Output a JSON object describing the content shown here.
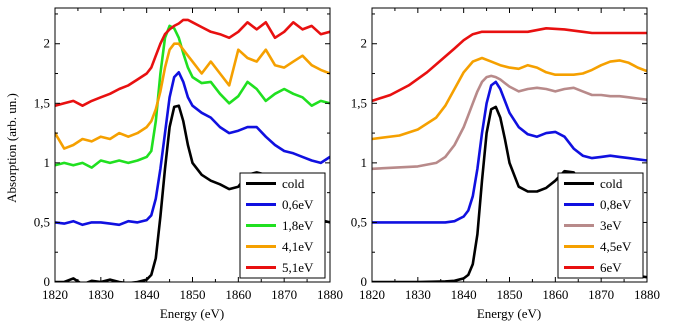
{
  "chart_data": [
    {
      "type": "line",
      "ylabel": "Absorption (arb. un.)",
      "xlabel": "Energy (eV)",
      "xlim": [
        1820,
        1880
      ],
      "ylim": [
        0,
        2.3
      ],
      "x_ticks": [
        1820,
        1830,
        1840,
        1850,
        1860,
        1870,
        1880
      ],
      "y_ticks": [
        "0",
        "0,5",
        "1",
        "1,5",
        "2"
      ],
      "y_tick_values": [
        0,
        0.5,
        1,
        1.5,
        2
      ],
      "legend_position": "bottom-right",
      "series": [
        {
          "name": "cold",
          "color": "#000000",
          "x": [
            1820,
            1822,
            1824,
            1826,
            1828,
            1830,
            1832,
            1834,
            1836,
            1838,
            1840,
            1841,
            1842,
            1843,
            1844,
            1845,
            1846,
            1847,
            1848,
            1849,
            1850,
            1852,
            1854,
            1856,
            1858,
            1860,
            1862,
            1864,
            1866,
            1868,
            1870,
            1872,
            1874,
            1876,
            1878,
            1880
          ],
          "y": [
            0.0,
            0.0,
            0.03,
            -0.02,
            0.01,
            0.0,
            0.02,
            0.0,
            -0.01,
            0.0,
            0.02,
            0.06,
            0.2,
            0.55,
            0.95,
            1.3,
            1.47,
            1.48,
            1.35,
            1.15,
            1.0,
            0.9,
            0.85,
            0.82,
            0.78,
            0.8,
            0.9,
            0.92,
            0.9,
            0.82,
            0.72,
            0.65,
            0.58,
            0.53,
            0.52,
            0.5
          ]
        },
        {
          "name": "0,6eV",
          "color": "#1010e0",
          "x": [
            1820,
            1822,
            1824,
            1826,
            1828,
            1830,
            1832,
            1834,
            1836,
            1838,
            1840,
            1841,
            1842,
            1843,
            1844,
            1845,
            1846,
            1847,
            1848,
            1849,
            1850,
            1852,
            1854,
            1856,
            1858,
            1860,
            1862,
            1864,
            1866,
            1868,
            1870,
            1872,
            1874,
            1876,
            1878,
            1880
          ],
          "y": [
            0.5,
            0.49,
            0.51,
            0.48,
            0.5,
            0.5,
            0.49,
            0.48,
            0.51,
            0.5,
            0.52,
            0.56,
            0.7,
            0.95,
            1.25,
            1.55,
            1.72,
            1.76,
            1.68,
            1.55,
            1.48,
            1.42,
            1.38,
            1.3,
            1.25,
            1.27,
            1.3,
            1.3,
            1.22,
            1.15,
            1.1,
            1.08,
            1.05,
            1.02,
            1.0,
            1.05
          ]
        },
        {
          "name": "1,8eV",
          "color": "#20e020",
          "x": [
            1820,
            1822,
            1824,
            1826,
            1828,
            1830,
            1832,
            1834,
            1836,
            1838,
            1840,
            1841,
            1842,
            1843,
            1844,
            1845,
            1846,
            1847,
            1848,
            1849,
            1850,
            1852,
            1854,
            1856,
            1858,
            1860,
            1862,
            1864,
            1866,
            1868,
            1870,
            1872,
            1874,
            1876,
            1878,
            1880
          ],
          "y": [
            0.98,
            1.0,
            0.98,
            1.0,
            0.96,
            1.02,
            1.0,
            1.02,
            1.0,
            1.02,
            1.05,
            1.1,
            1.35,
            1.75,
            2.05,
            2.15,
            2.13,
            2.05,
            1.92,
            1.8,
            1.72,
            1.67,
            1.68,
            1.58,
            1.5,
            1.56,
            1.68,
            1.62,
            1.52,
            1.58,
            1.62,
            1.58,
            1.55,
            1.48,
            1.52,
            1.5
          ]
        },
        {
          "name": "4,1eV",
          "color": "#f5a000",
          "x": [
            1820,
            1822,
            1824,
            1826,
            1828,
            1830,
            1832,
            1834,
            1836,
            1838,
            1840,
            1841,
            1842,
            1843,
            1844,
            1845,
            1846,
            1847,
            1848,
            1849,
            1850,
            1852,
            1854,
            1856,
            1858,
            1860,
            1862,
            1864,
            1866,
            1868,
            1870,
            1872,
            1874,
            1876,
            1878,
            1880
          ],
          "y": [
            1.25,
            1.12,
            1.15,
            1.2,
            1.18,
            1.22,
            1.2,
            1.25,
            1.22,
            1.25,
            1.3,
            1.35,
            1.45,
            1.6,
            1.8,
            1.95,
            2.0,
            2.0,
            1.95,
            1.9,
            1.85,
            1.75,
            1.85,
            1.75,
            1.65,
            1.95,
            1.88,
            1.85,
            1.95,
            1.82,
            1.8,
            1.85,
            1.9,
            1.82,
            1.78,
            1.75
          ]
        },
        {
          "name": "5,1eV",
          "color": "#e81010",
          "x": [
            1820,
            1822,
            1824,
            1826,
            1828,
            1830,
            1832,
            1834,
            1836,
            1838,
            1840,
            1841,
            1842,
            1843,
            1844,
            1845,
            1846,
            1847,
            1848,
            1849,
            1850,
            1852,
            1854,
            1856,
            1858,
            1860,
            1862,
            1864,
            1866,
            1868,
            1870,
            1872,
            1874,
            1876,
            1878,
            1880
          ],
          "y": [
            1.48,
            1.5,
            1.52,
            1.48,
            1.52,
            1.55,
            1.58,
            1.62,
            1.65,
            1.7,
            1.75,
            1.8,
            1.9,
            2.0,
            2.08,
            2.12,
            2.15,
            2.17,
            2.2,
            2.2,
            2.18,
            2.14,
            2.1,
            2.08,
            2.05,
            2.1,
            2.18,
            2.12,
            2.18,
            2.05,
            2.1,
            2.18,
            2.12,
            2.15,
            2.08,
            2.1
          ]
        }
      ]
    },
    {
      "type": "line",
      "ylabel": "",
      "xlabel": "Energy (eV)",
      "xlim": [
        1820,
        1880
      ],
      "ylim": [
        0,
        2.3
      ],
      "x_ticks": [
        1820,
        1830,
        1840,
        1850,
        1860,
        1870,
        1880
      ],
      "y_ticks": [
        "0",
        "0,5",
        "1",
        "1,5",
        "2"
      ],
      "y_tick_values": [
        0,
        0.5,
        1,
        1.5,
        2
      ],
      "legend_position": "bottom-right",
      "series": [
        {
          "name": "cold",
          "color": "#000000",
          "x": [
            1820,
            1830,
            1836,
            1838,
            1840,
            1841,
            1842,
            1843,
            1844,
            1845,
            1846,
            1847,
            1848,
            1849,
            1850,
            1852,
            1854,
            1856,
            1858,
            1860,
            1862,
            1864,
            1866,
            1868,
            1870,
            1872,
            1874,
            1876,
            1878,
            1880
          ],
          "y": [
            0,
            0,
            0.005,
            0.01,
            0.03,
            0.06,
            0.15,
            0.4,
            0.85,
            1.25,
            1.45,
            1.47,
            1.38,
            1.2,
            1.0,
            0.8,
            0.76,
            0.76,
            0.79,
            0.85,
            0.93,
            0.92,
            0.82,
            0.6,
            0.35,
            0.15,
            0.1,
            0.08,
            0.05,
            0.04
          ]
        },
        {
          "name": "0,8eV",
          "color": "#1010e0",
          "x": [
            1820,
            1830,
            1836,
            1838,
            1840,
            1841,
            1842,
            1843,
            1844,
            1845,
            1846,
            1847,
            1848,
            1849,
            1850,
            1852,
            1854,
            1856,
            1858,
            1860,
            1862,
            1864,
            1866,
            1868,
            1870,
            1872,
            1874,
            1876,
            1878,
            1880
          ],
          "y": [
            0.5,
            0.5,
            0.5,
            0.51,
            0.55,
            0.6,
            0.72,
            0.95,
            1.25,
            1.5,
            1.65,
            1.68,
            1.62,
            1.52,
            1.42,
            1.3,
            1.24,
            1.22,
            1.25,
            1.26,
            1.22,
            1.12,
            1.06,
            1.04,
            1.05,
            1.06,
            1.05,
            1.04,
            1.03,
            1.02
          ]
        },
        {
          "name": "3eV",
          "color": "#b88a8a",
          "x": [
            1820,
            1830,
            1834,
            1836,
            1838,
            1840,
            1841,
            1842,
            1843,
            1844,
            1845,
            1846,
            1847,
            1848,
            1849,
            1850,
            1852,
            1854,
            1856,
            1858,
            1860,
            1862,
            1864,
            1866,
            1868,
            1870,
            1872,
            1874,
            1876,
            1878,
            1880
          ],
          "y": [
            0.95,
            0.97,
            1.0,
            1.05,
            1.15,
            1.3,
            1.4,
            1.5,
            1.6,
            1.68,
            1.72,
            1.73,
            1.72,
            1.7,
            1.67,
            1.64,
            1.6,
            1.62,
            1.63,
            1.62,
            1.6,
            1.62,
            1.63,
            1.6,
            1.57,
            1.57,
            1.56,
            1.56,
            1.55,
            1.54,
            1.53
          ]
        },
        {
          "name": "4,5eV",
          "color": "#f5a000",
          "x": [
            1820,
            1826,
            1830,
            1834,
            1836,
            1838,
            1840,
            1842,
            1844,
            1846,
            1848,
            1850,
            1852,
            1854,
            1856,
            1858,
            1860,
            1862,
            1864,
            1866,
            1868,
            1870,
            1872,
            1874,
            1876,
            1878,
            1880
          ],
          "y": [
            1.2,
            1.23,
            1.28,
            1.38,
            1.48,
            1.62,
            1.76,
            1.85,
            1.88,
            1.85,
            1.82,
            1.8,
            1.79,
            1.82,
            1.8,
            1.76,
            1.74,
            1.74,
            1.74,
            1.75,
            1.78,
            1.82,
            1.85,
            1.86,
            1.84,
            1.8,
            1.77
          ]
        },
        {
          "name": "6eV",
          "color": "#e81010",
          "x": [
            1820,
            1824,
            1828,
            1832,
            1835,
            1838,
            1840,
            1842,
            1844,
            1846,
            1848,
            1850,
            1854,
            1858,
            1862,
            1866,
            1868,
            1870,
            1872,
            1874,
            1876,
            1878,
            1880
          ],
          "y": [
            1.52,
            1.57,
            1.65,
            1.76,
            1.86,
            1.96,
            2.03,
            2.08,
            2.1,
            2.1,
            2.1,
            2.1,
            2.1,
            2.13,
            2.12,
            2.1,
            2.09,
            2.09,
            2.09,
            2.09,
            2.09,
            2.09,
            2.09
          ]
        }
      ]
    }
  ]
}
